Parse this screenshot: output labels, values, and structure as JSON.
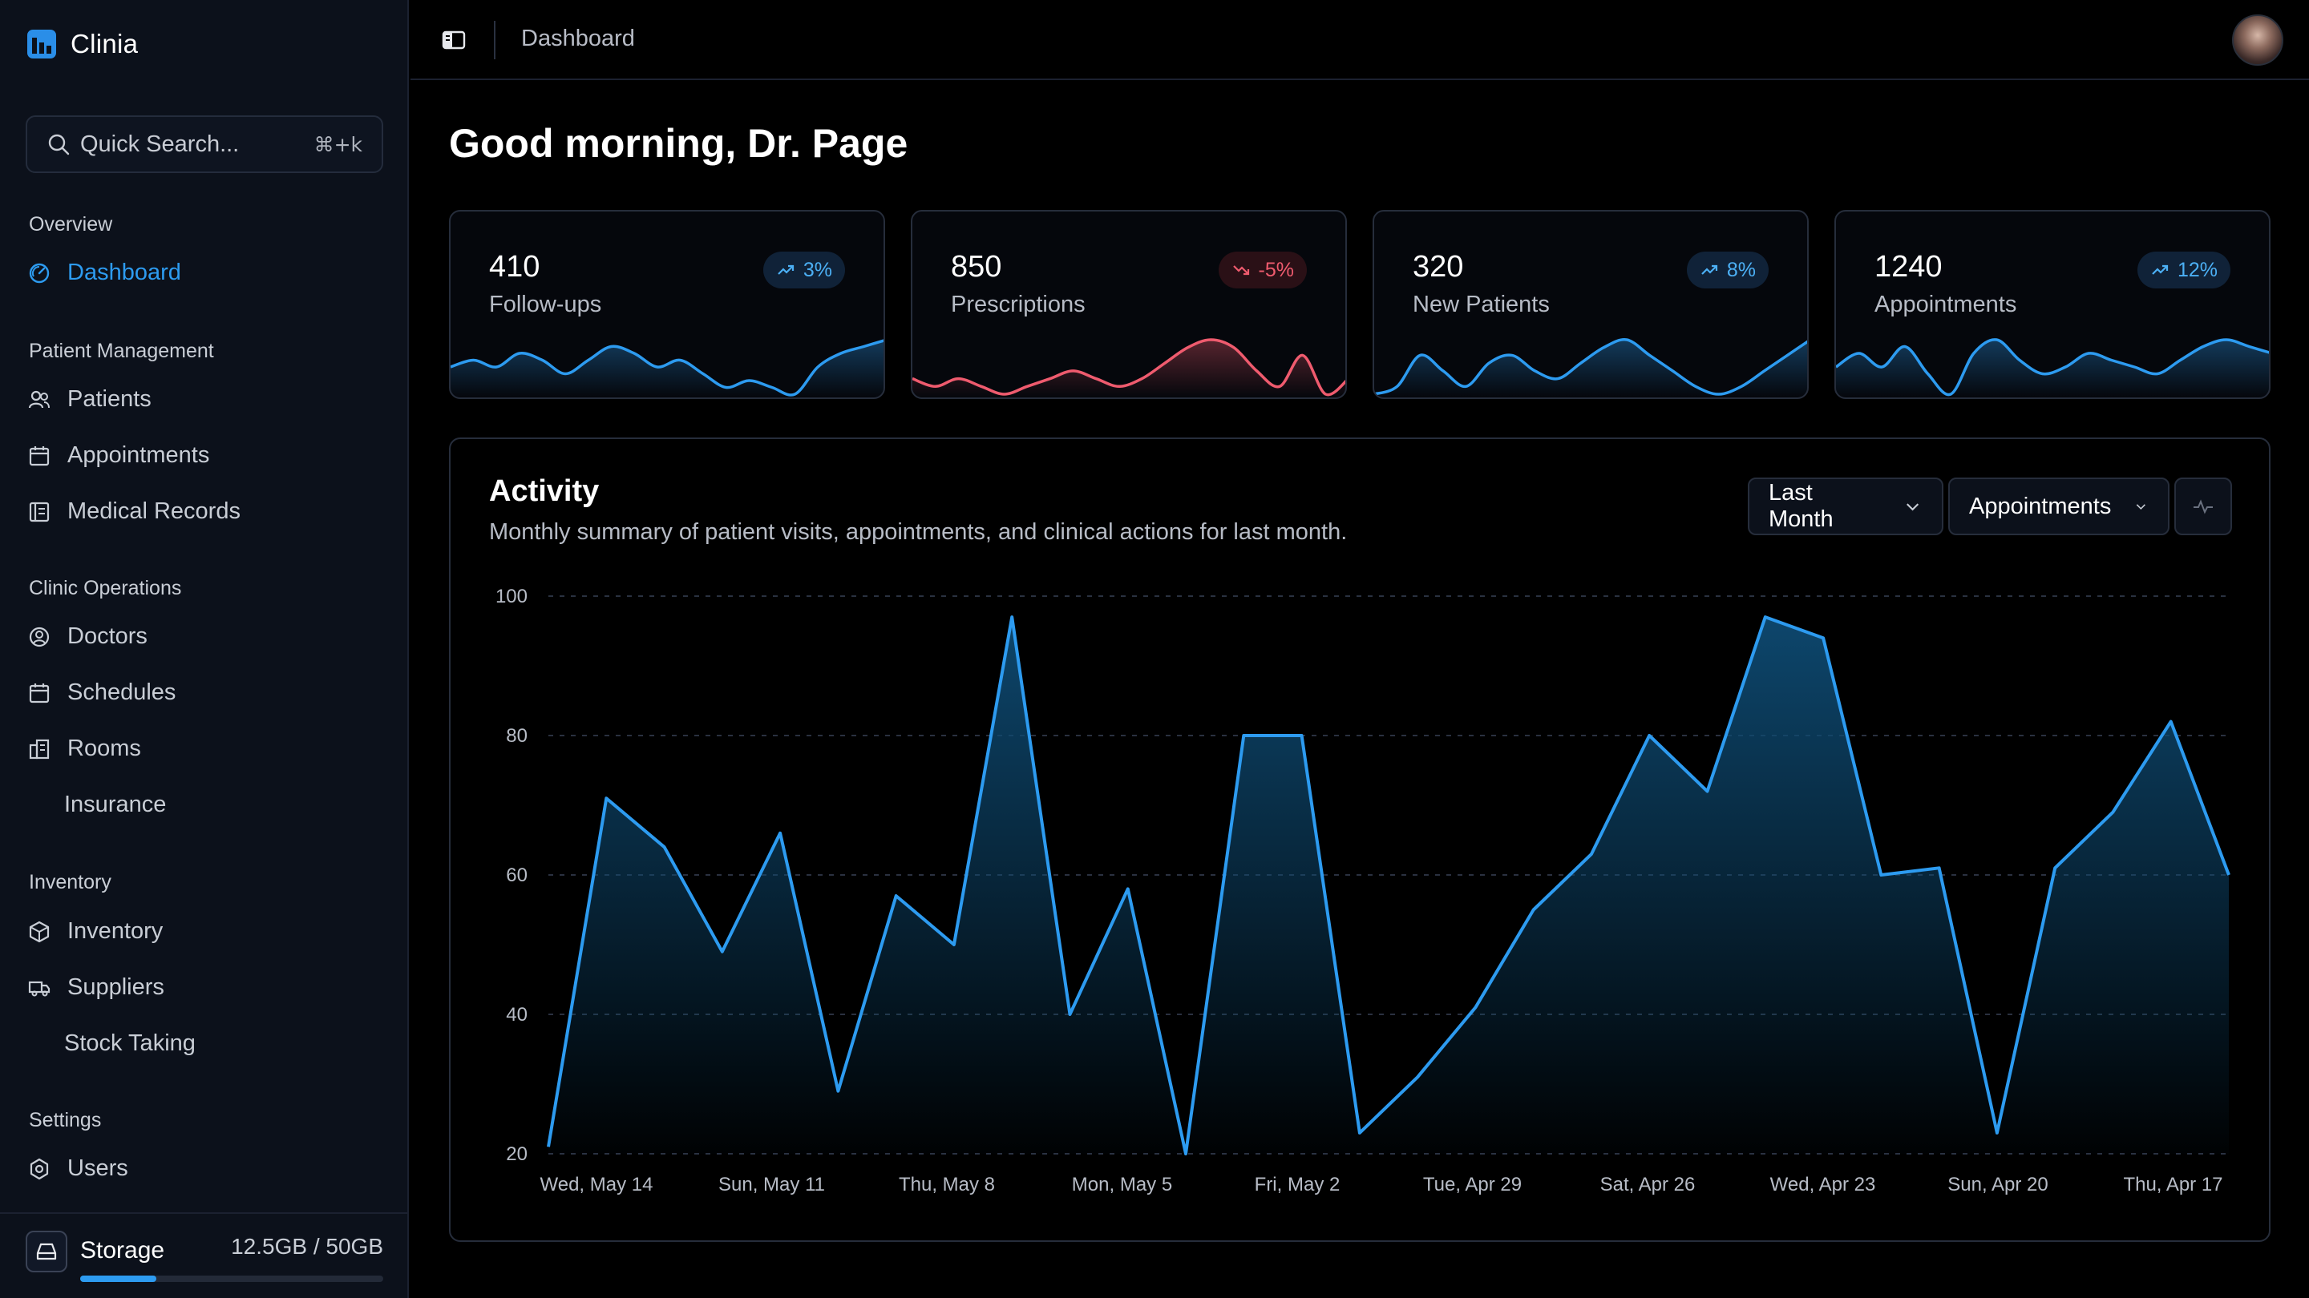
{
  "app": {
    "name": "Clinia"
  },
  "search": {
    "placeholder": "Quick Search...",
    "shortcut": "⌘+k"
  },
  "sidebar": {
    "sections": [
      {
        "title": "Overview",
        "items": [
          {
            "label": "Dashboard",
            "icon": "dashboard-icon",
            "active": true
          }
        ]
      },
      {
        "title": "Patient Management",
        "items": [
          {
            "label": "Patients",
            "icon": "users-icon"
          },
          {
            "label": "Appointments",
            "icon": "calendar-icon"
          },
          {
            "label": "Medical Records",
            "icon": "records-icon"
          }
        ]
      },
      {
        "title": "Clinic Operations",
        "items": [
          {
            "label": "Doctors",
            "icon": "user-circle-icon"
          },
          {
            "label": "Schedules",
            "icon": "calendar-icon"
          },
          {
            "label": "Rooms",
            "icon": "building-icon"
          },
          {
            "label": "Insurance",
            "icon": ""
          }
        ]
      },
      {
        "title": "Inventory",
        "items": [
          {
            "label": "Inventory",
            "icon": "package-icon"
          },
          {
            "label": "Suppliers",
            "icon": "truck-icon"
          },
          {
            "label": "Stock Taking",
            "icon": ""
          }
        ]
      },
      {
        "title": "Settings",
        "items": [
          {
            "label": "Users",
            "icon": "settings-icon"
          }
        ]
      }
    ],
    "storage": {
      "label": "Storage",
      "value": "12.5GB / 50GB",
      "used_fraction": 0.25
    }
  },
  "header": {
    "title": "Dashboard"
  },
  "greeting": "Good morning, Dr. Page",
  "colors": {
    "accent": "#2d9bf0",
    "negative": "#ef5b6e",
    "background": "#000000",
    "sidebar": "#0c111b"
  },
  "stats": [
    {
      "value": "410",
      "label": "Follow-ups",
      "change": "3%",
      "trend": "up",
      "spark": [
        6,
        7,
        6,
        8,
        7,
        5,
        7,
        9,
        8,
        6,
        7,
        5,
        3,
        4,
        3,
        2,
        6,
        8,
        9,
        10
      ]
    },
    {
      "value": "850",
      "label": "Prescriptions",
      "change": "-5%",
      "trend": "down",
      "spark": [
        5,
        4,
        5,
        4,
        3,
        4,
        5,
        6,
        5,
        4,
        5,
        7,
        9,
        10,
        9,
        6,
        4,
        8,
        3,
        5
      ]
    },
    {
      "value": "320",
      "label": "New Patients",
      "change": "8%",
      "trend": "up",
      "spark": [
        3,
        4,
        8,
        6,
        4,
        7,
        8,
        6,
        5,
        7,
        9,
        10,
        8,
        6,
        4,
        3,
        4,
        6,
        8,
        10
      ]
    },
    {
      "value": "1240",
      "label": "Appointments",
      "change": "12%",
      "trend": "up",
      "spark": [
        6,
        8,
        6,
        9,
        5,
        2,
        8,
        10,
        7,
        5,
        6,
        8,
        7,
        6,
        5,
        7,
        9,
        10,
        9,
        8
      ]
    }
  ],
  "activity": {
    "title": "Activity",
    "subtitle": "Monthly summary of patient visits, appointments, and clinical actions for last month.",
    "range_select": "Last Month",
    "metric_select": "Appointments"
  },
  "chart_data": {
    "type": "area",
    "title": "Activity",
    "xlabel": "",
    "ylabel": "",
    "ylim": [
      20,
      100
    ],
    "yticks": [
      100,
      80,
      60,
      40,
      20
    ],
    "grid": true,
    "x_tick_labels": [
      "Wed, May 14",
      "Sun, May 11",
      "Thu, May 8",
      "Mon, May 5",
      "Fri, May 2",
      "Tue, Apr 29",
      "Sat, Apr 26",
      "Wed, Apr 23",
      "Sun, Apr 20",
      "Thu, Apr 17"
    ],
    "series": [
      {
        "values": [
          21,
          71,
          64,
          49,
          66,
          29,
          57,
          50,
          97,
          40,
          58,
          20,
          80,
          80,
          23,
          31,
          41,
          55,
          63,
          80,
          72,
          97,
          94,
          60,
          61,
          23,
          61,
          69,
          82,
          60
        ]
      }
    ]
  }
}
